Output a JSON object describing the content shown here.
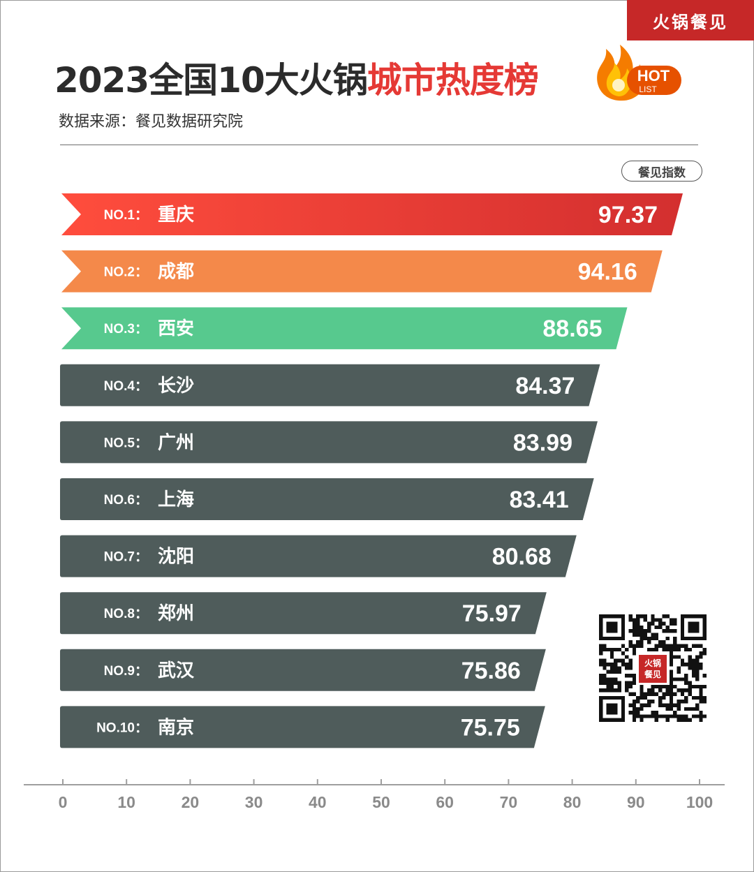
{
  "brand": {
    "tag": "火锅餐见",
    "qr_logo": "火锅\n餐见"
  },
  "header": {
    "title_main": "2023全国10大火锅",
    "title_highlight": "城市热度榜",
    "hot_badge": {
      "hot": "HOT",
      "list": "LIST",
      "icon": "flame-icon"
    },
    "source": "数据来源：餐见数据研究院",
    "index_label": "餐见指数"
  },
  "colors": {
    "rank1": "#e53935",
    "rank2": "#f4894a",
    "rank3": "#57c98e",
    "others": "#4f5c5b",
    "axis": "#9e9e9e",
    "tick_text": "#8a8a8a"
  },
  "chart_data": {
    "type": "bar",
    "orientation": "horizontal",
    "categories": [
      "重庆",
      "成都",
      "西安",
      "长沙",
      "广州",
      "上海",
      "沈阳",
      "郑州",
      "武汉",
      "南京"
    ],
    "rank_labels": [
      "NO.1：",
      "NO.2：",
      "NO.3：",
      "NO.4：",
      "NO.5：",
      "NO.6：",
      "NO.7：",
      "NO.8：",
      "NO.9：",
      "NO.10："
    ],
    "values": [
      97.37,
      94.16,
      88.65,
      84.37,
      83.99,
      83.41,
      80.68,
      75.97,
      75.86,
      75.75
    ],
    "value_labels": [
      "97.37",
      "94.16",
      "88.65",
      "84.37",
      "83.99",
      "83.41",
      "80.68",
      "75.97",
      "75.86",
      "75.75"
    ],
    "title": "2023全国10大火锅城市热度榜",
    "series_name": "餐见指数",
    "xlim": [
      0,
      100
    ],
    "xticks": [
      "0",
      "10",
      "20",
      "30",
      "40",
      "50",
      "60",
      "70",
      "80",
      "90",
      "100"
    ],
    "grid": false,
    "legend": "top-right"
  }
}
